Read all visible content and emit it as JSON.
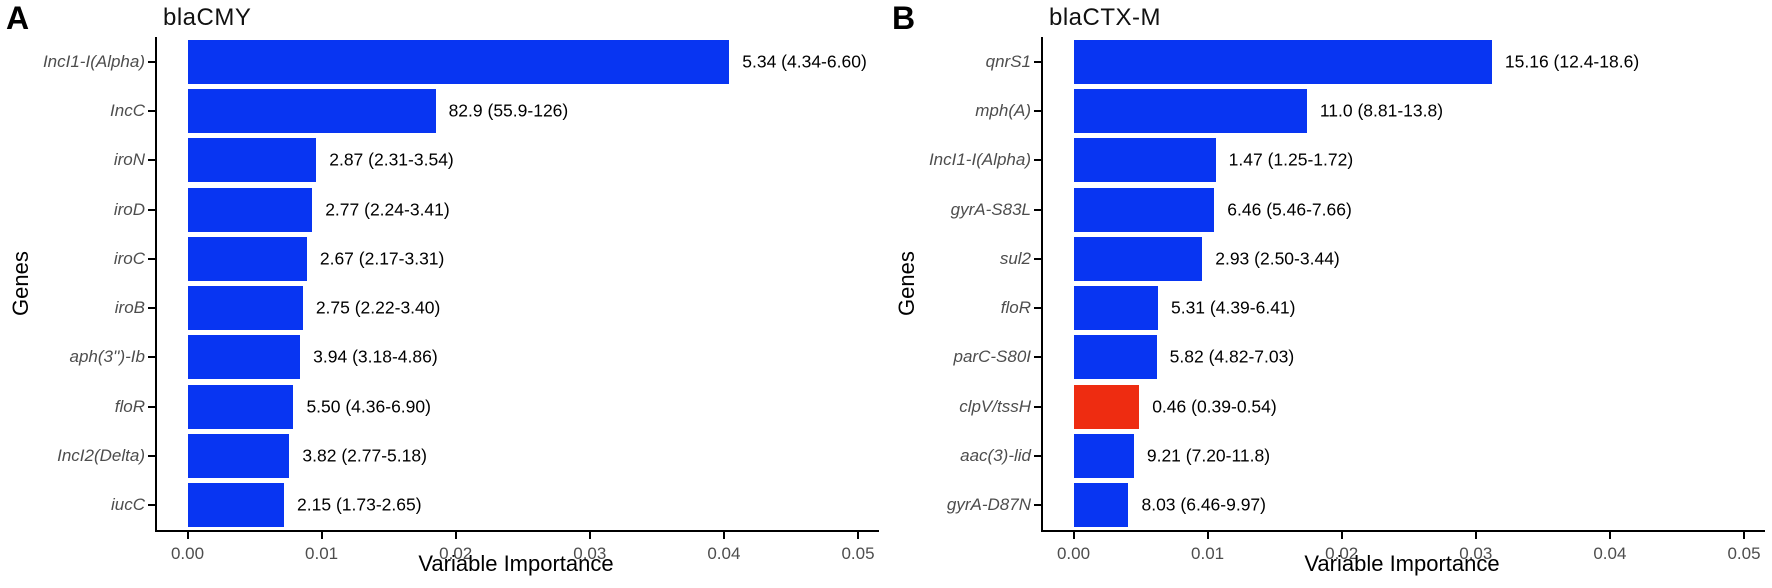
{
  "colors": {
    "bar_default": "#0835f2",
    "bar_highlight": "#ee2c11",
    "axis_text": "#4d4d4d",
    "axis_line": "#000000",
    "label_text": "#000000"
  },
  "chart_data": [
    {
      "type": "bar",
      "orientation": "horizontal",
      "panel_label": "A",
      "title": "blaCMY",
      "xlabel": "Variable Importance",
      "ylabel": "Genes",
      "xlim": [
        0,
        0.0516
      ],
      "grid": false,
      "legend": "none",
      "x_ticks": [
        0,
        0.01,
        0.02,
        0.03,
        0.04,
        0.05
      ],
      "x_tick_labels": [
        "0.00",
        "0.01",
        "0.02",
        "0.03",
        "0.04",
        "0.05"
      ],
      "categories": [
        "IncI1-I(Alpha)",
        "IncC",
        "iroN",
        "iroD",
        "iroC",
        "iroB",
        "aph(3'')-Ib",
        "floR",
        "IncI2(Delta)",
        "iucC"
      ],
      "values": [
        0.0404,
        0.0185,
        0.0096,
        0.0093,
        0.0089,
        0.0086,
        0.0084,
        0.0079,
        0.0076,
        0.0072
      ],
      "bar_labels": [
        "5.34 (4.34-6.60)",
        "82.9 (55.9-126)",
        "2.87 (2.31-3.54)",
        "2.77 (2.24-3.41)",
        "2.67 (2.17-3.31)",
        "2.75 (2.22-3.40)",
        "3.94 (3.18-4.86)",
        "5.50 (4.36-6.90)",
        "3.82 (2.77-5.18)",
        "2.15 (1.73-2.65)"
      ],
      "bar_colors": [
        "#0835f2",
        "#0835f2",
        "#0835f2",
        "#0835f2",
        "#0835f2",
        "#0835f2",
        "#0835f2",
        "#0835f2",
        "#0835f2",
        "#0835f2"
      ]
    },
    {
      "type": "bar",
      "orientation": "horizontal",
      "panel_label": "B",
      "title": "blaCTX-M",
      "xlabel": "Variable Importance",
      "ylabel": "Genes",
      "xlim": [
        0,
        0.0516
      ],
      "grid": false,
      "legend": "none",
      "x_ticks": [
        0,
        0.01,
        0.02,
        0.03,
        0.04,
        0.05
      ],
      "x_tick_labels": [
        "0.00",
        "0.01",
        "0.02",
        "0.03",
        "0.04",
        "0.05"
      ],
      "categories": [
        "qnrS1",
        "mph(A)",
        "IncI1-I(Alpha)",
        "gyrA-S83L",
        "sul2",
        "floR",
        "parC-S80I",
        "clpV/tssH",
        "aac(3)-lid",
        "gyrA-D87N"
      ],
      "values": [
        0.0312,
        0.0174,
        0.0106,
        0.0105,
        0.0096,
        0.0063,
        0.0062,
        0.0049,
        0.0045,
        0.0041
      ],
      "bar_labels": [
        "15.16 (12.4-18.6)",
        "11.0 (8.81-13.8)",
        "1.47 (1.25-1.72)",
        "6.46 (5.46-7.66)",
        "2.93 (2.50-3.44)",
        "5.31 (4.39-6.41)",
        "5.82 (4.82-7.03)",
        "0.46 (0.39-0.54)",
        "9.21 (7.20-11.8)",
        "8.03 (6.46-9.97)"
      ],
      "bar_colors": [
        "#0835f2",
        "#0835f2",
        "#0835f2",
        "#0835f2",
        "#0835f2",
        "#0835f2",
        "#0835f2",
        "#ee2c11",
        "#0835f2",
        "#0835f2"
      ]
    }
  ]
}
